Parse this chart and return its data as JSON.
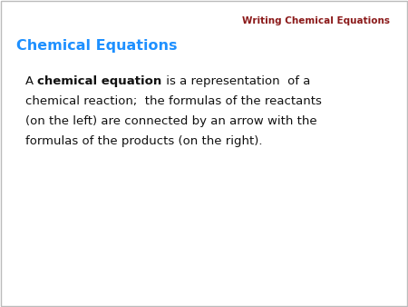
{
  "title": "Writing Chemical Equations",
  "title_color": "#8B1A1A",
  "title_fontsize": 7.5,
  "heading": "Chemical Equations",
  "heading_color": "#1E90FF",
  "heading_fontsize": 11.5,
  "body_color": "#111111",
  "body_fontsize": 9.5,
  "background_color": "#ffffff",
  "border_color": "#bbbbbb",
  "line1_pre": "A ",
  "line1_bold": "chemical equation",
  "line1_post": " is a representation  of a",
  "line2": "chemical reaction;  the formulas of the reactants",
  "line3": "(on the left) are connected by an arrow with the",
  "line4": "formulas of the products (on the right)."
}
